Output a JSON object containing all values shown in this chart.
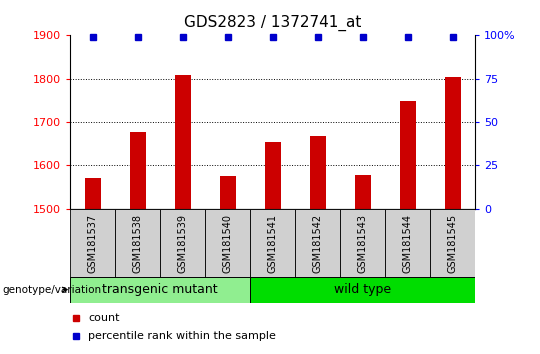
{
  "title": "GDS2823 / 1372741_at",
  "samples": [
    "GSM181537",
    "GSM181538",
    "GSM181539",
    "GSM181540",
    "GSM181541",
    "GSM181542",
    "GSM181543",
    "GSM181544",
    "GSM181545"
  ],
  "counts": [
    1572,
    1678,
    1808,
    1576,
    1655,
    1668,
    1578,
    1748,
    1805
  ],
  "percentile_ranks": [
    99,
    99,
    99,
    99,
    99,
    99,
    99,
    99,
    99
  ],
  "groups": [
    {
      "label": "transgenic mutant",
      "start": 0,
      "end": 4,
      "color": "#90EE90"
    },
    {
      "label": "wild type",
      "start": 4,
      "end": 9,
      "color": "#00DD00"
    }
  ],
  "group_label": "genotype/variation",
  "ylim_left": [
    1500,
    1900
  ],
  "yticks_left": [
    1500,
    1600,
    1700,
    1800,
    1900
  ],
  "ylim_right": [
    0,
    100
  ],
  "yticks_right": [
    0,
    25,
    50,
    75,
    100
  ],
  "bar_color": "#CC0000",
  "dot_color": "#0000CC",
  "bar_width": 0.35,
  "legend_items": [
    {
      "label": "count",
      "color": "#CC0000"
    },
    {
      "label": "percentile rank within the sample",
      "color": "#0000CC"
    }
  ],
  "title_fontsize": 11,
  "tick_fontsize": 8,
  "sample_fontsize": 7,
  "group_fontsize": 9,
  "legend_fontsize": 8,
  "grid_color": "#000000",
  "sample_box_color": "#D0D0D0",
  "right_axis_top_label": "100%"
}
